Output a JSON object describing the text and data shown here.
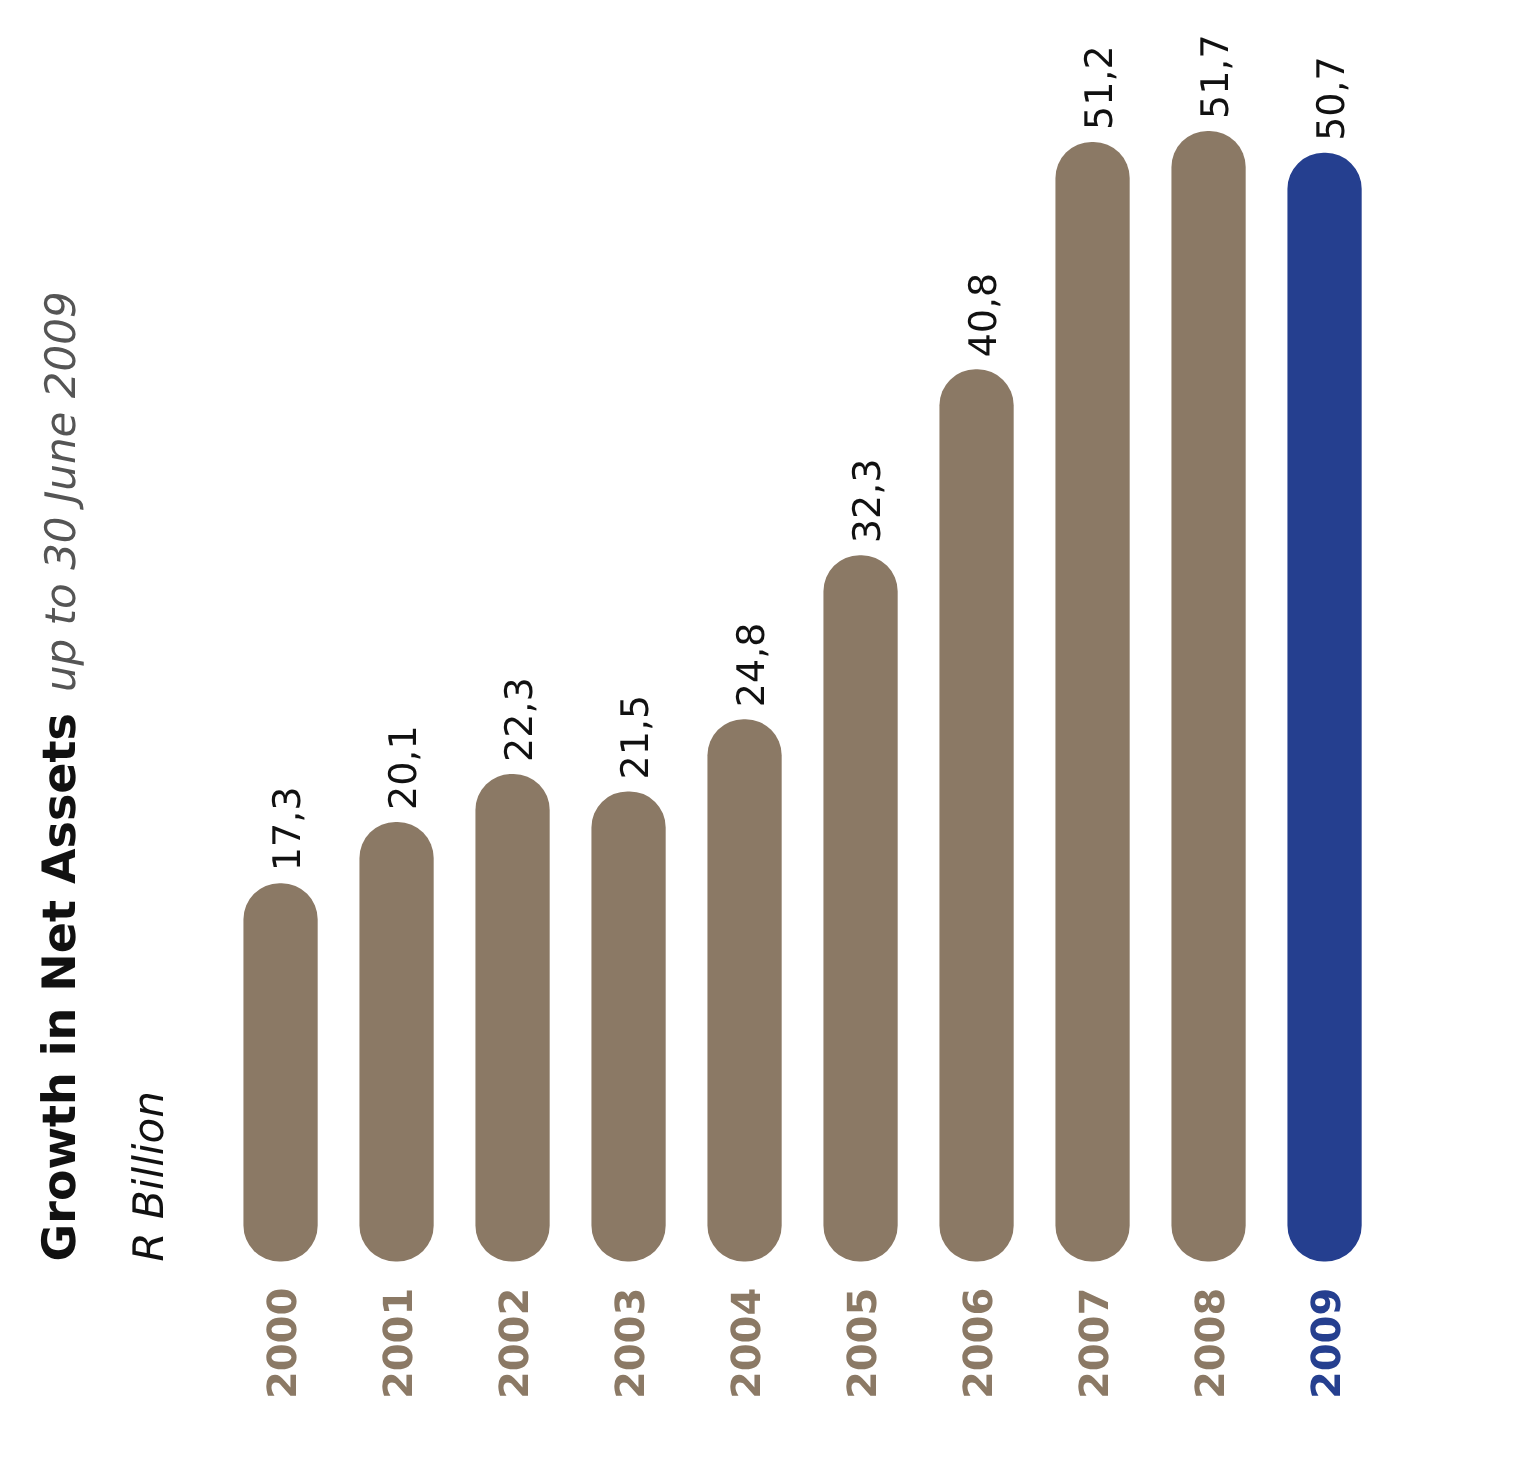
{
  "chart_data": {
    "type": "bar",
    "title": "Growth in Net Assets",
    "subtitle": "up to 30 June 2009",
    "ylabel": "R Billion",
    "categories": [
      "2000",
      "2001",
      "2002",
      "2003",
      "2004",
      "2005",
      "2006",
      "2007",
      "2008",
      "2009"
    ],
    "values": [
      17.3,
      20.1,
      22.3,
      21.5,
      24.8,
      32.3,
      40.8,
      51.2,
      51.7,
      50.7
    ],
    "value_labels": [
      "17,3",
      "20,1",
      "22,3",
      "21,5",
      "24,8",
      "32,3",
      "40,8",
      "51,2",
      "51,7",
      "50,7"
    ],
    "colors": [
      "#8b7965",
      "#8b7965",
      "#8b7965",
      "#8b7965",
      "#8b7965",
      "#8b7965",
      "#8b7965",
      "#8b7965",
      "#8b7965",
      "#253f8f"
    ],
    "grid": false,
    "tick_labels": false
  }
}
